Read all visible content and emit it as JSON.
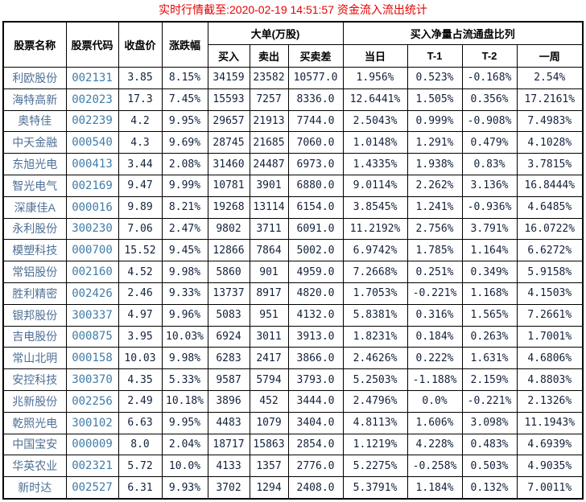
{
  "title": "实时行情截至:2020-02-19 14:51:57 资金流入流出统计",
  "colors": {
    "title_red": "#e60000",
    "stock_name_blue": "#4f6f96",
    "stock_code_blue": "#3f7ca8",
    "value_navy": "#12203a",
    "border_black": "#000000",
    "background": "#ffffff"
  },
  "table": {
    "headers": {
      "stock_name": "股票名称",
      "stock_code": "股票代码",
      "close_price": "收盘价",
      "change_pct": "涨跌幅",
      "large_order_group": "大单(万股)",
      "buy": "买入",
      "sell": "卖出",
      "buy_sell_diff": "买卖差",
      "net_buy_ratio_group": "买入净量占流通盘比列",
      "day": "当日",
      "t_minus_1": "T-1",
      "t_minus_2": "T-2",
      "week": "一周"
    },
    "rows": [
      [
        "利欧股份",
        "002131",
        "3.85",
        "8.15%",
        "34159",
        "23582",
        "10577.0",
        "1.956%",
        "0.523%",
        "-0.168%",
        "2.54%"
      ],
      [
        "海特高新",
        "002023",
        "17.3",
        "7.45%",
        "15593",
        "7257",
        "8336.0",
        "12.6441%",
        "1.505%",
        "0.356%",
        "17.2161%"
      ],
      [
        "奥特佳",
        "002239",
        "4.2",
        "9.95%",
        "29657",
        "21913",
        "7744.0",
        "2.5043%",
        "0.999%",
        "-0.908%",
        "7.4983%"
      ],
      [
        "中天金融",
        "000540",
        "4.3",
        "9.69%",
        "28745",
        "21685",
        "7060.0",
        "1.0148%",
        "1.291%",
        "0.479%",
        "4.1028%"
      ],
      [
        "东旭光电",
        "000413",
        "3.44",
        "2.08%",
        "31460",
        "24487",
        "6973.0",
        "1.4335%",
        "1.938%",
        "0.83%",
        "3.7815%"
      ],
      [
        "智光电气",
        "002169",
        "9.47",
        "9.99%",
        "10781",
        "3901",
        "6880.0",
        "9.0114%",
        "2.262%",
        "3.136%",
        "16.8444%"
      ],
      [
        "深康佳A",
        "000016",
        "9.89",
        "8.21%",
        "19268",
        "13114",
        "6154.0",
        "3.8545%",
        "1.241%",
        "-0.936%",
        "4.6485%"
      ],
      [
        "永利股份",
        "300230",
        "7.06",
        "2.47%",
        "9802",
        "3711",
        "6091.0",
        "11.2192%",
        "2.756%",
        "3.791%",
        "16.0722%"
      ],
      [
        "模塑科技",
        "000700",
        "15.52",
        "9.45%",
        "12866",
        "7864",
        "5002.0",
        "6.9742%",
        "1.785%",
        "1.164%",
        "6.6272%"
      ],
      [
        "常铝股份",
        "002160",
        "4.52",
        "9.98%",
        "5860",
        "901",
        "4959.0",
        "7.2668%",
        "0.251%",
        "0.349%",
        "5.9158%"
      ],
      [
        "胜利精密",
        "002426",
        "2.46",
        "9.33%",
        "13737",
        "8917",
        "4820.0",
        "1.7053%",
        "-0.221%",
        "1.168%",
        "4.1503%"
      ],
      [
        "银邦股份",
        "300337",
        "4.97",
        "9.96%",
        "5083",
        "951",
        "4132.0",
        "5.8381%",
        "0.316%",
        "1.565%",
        "7.2661%"
      ],
      [
        "吉电股份",
        "000875",
        "3.95",
        "10.03%",
        "6924",
        "3011",
        "3913.0",
        "1.8231%",
        "0.184%",
        "0.263%",
        "1.7001%"
      ],
      [
        "常山北明",
        "000158",
        "10.03",
        "9.98%",
        "6283",
        "2417",
        "3866.0",
        "2.4626%",
        "0.222%",
        "1.631%",
        "4.6806%"
      ],
      [
        "安控科技",
        "300370",
        "4.35",
        "5.33%",
        "9587",
        "5794",
        "3793.0",
        "5.2503%",
        "-1.188%",
        "2.159%",
        "4.8803%"
      ],
      [
        "兆新股份",
        "002256",
        "2.49",
        "10.18%",
        "3896",
        "452",
        "3444.0",
        "2.4796%",
        "0.0%",
        "-0.221%",
        "2.1326%"
      ],
      [
        "乾照光电",
        "300102",
        "6.63",
        "9.95%",
        "4483",
        "1079",
        "3404.0",
        "4.8113%",
        "1.606%",
        "3.098%",
        "11.1943%"
      ],
      [
        "中国宝安",
        "000009",
        "8.0",
        "2.04%",
        "18717",
        "15863",
        "2854.0",
        "1.1219%",
        "4.228%",
        "0.483%",
        "4.6939%"
      ],
      [
        "华英农业",
        "002321",
        "5.72",
        "10.0%",
        "4133",
        "1357",
        "2776.0",
        "5.2275%",
        "-0.258%",
        "0.503%",
        "4.9035%"
      ],
      [
        "新时达",
        "002527",
        "6.31",
        "9.93%",
        "3702",
        "1294",
        "2408.0",
        "5.3791%",
        "1.184%",
        "0.132%",
        "7.0011%"
      ]
    ]
  }
}
